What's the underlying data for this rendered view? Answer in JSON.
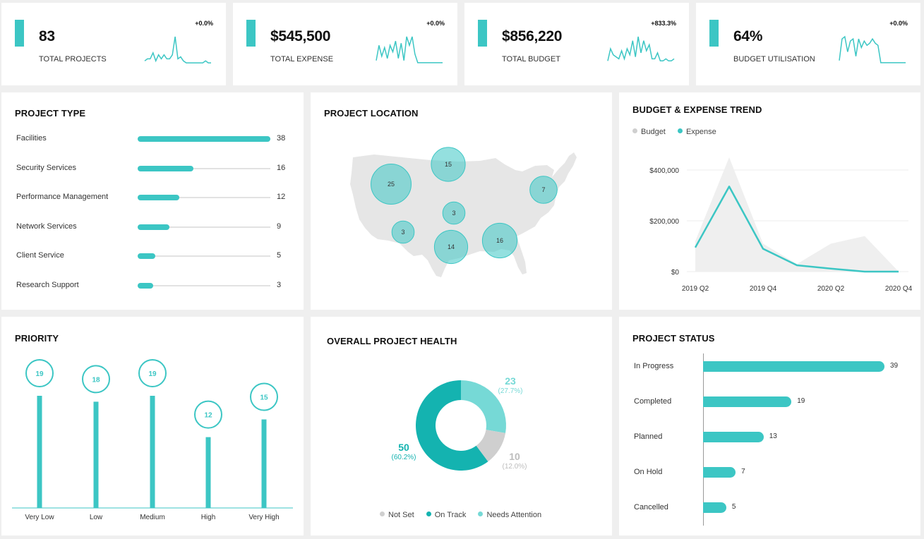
{
  "colors": {
    "accent": "#3cc6c4",
    "dark_teal": "#14b3b0",
    "light_teal": "#76d9d6",
    "grey": "#cfcfcf",
    "map": "#e6e6e6"
  },
  "kpis": [
    {
      "value": "83",
      "label": "TOTAL PROJECTS",
      "change": "+0.0%",
      "spark": [
        2,
        3,
        3,
        6,
        2,
        5,
        3,
        5,
        3,
        3,
        5,
        14,
        3,
        4,
        2,
        1,
        1,
        1,
        1,
        1,
        1,
        1,
        2,
        1,
        1
      ]
    },
    {
      "value": "$545,500",
      "label": "TOTAL EXPENSE",
      "change": "+0.0%",
      "spark": [
        2,
        9,
        4,
        8,
        3,
        9,
        6,
        11,
        3,
        10,
        2,
        13,
        9,
        13,
        5,
        1,
        1,
        1,
        1,
        1,
        1,
        1,
        1,
        1,
        1
      ]
    },
    {
      "value": "$856,220",
      "label": "TOTAL BUDGET",
      "change": "+833.3%",
      "spark": [
        2,
        8,
        5,
        4,
        3,
        7,
        3,
        8,
        5,
        12,
        4,
        14,
        6,
        12,
        7,
        10,
        3,
        3,
        6,
        2,
        2,
        3,
        2,
        2,
        3
      ]
    },
    {
      "value": "64%",
      "label": "BUDGET UTILISATION",
      "change": "+0.0%",
      "spark": [
        2,
        12,
        13,
        6,
        11,
        12,
        4,
        12,
        8,
        11,
        9,
        10,
        12,
        10,
        9,
        1,
        1,
        1,
        1,
        1,
        1,
        1,
        1,
        1,
        1
      ]
    }
  ],
  "project_type": {
    "title": "PROJECT TYPE",
    "chart_data": {
      "type": "bar",
      "categories": [
        "Facilities",
        "Security Services",
        "Performance Management",
        "Network Services",
        "Client Service",
        "Research Support"
      ],
      "values": [
        38,
        16,
        12,
        9,
        5,
        3
      ],
      "xlim": [
        0,
        38
      ]
    }
  },
  "project_location": {
    "title": "PROJECT LOCATION",
    "bubbles": [
      {
        "region": "West",
        "value": 25
      },
      {
        "region": "Northwest-central",
        "value": 15
      },
      {
        "region": "Northeast",
        "value": 7
      },
      {
        "region": "Central",
        "value": 3
      },
      {
        "region": "Southwest",
        "value": 3
      },
      {
        "region": "South",
        "value": 14
      },
      {
        "region": "Southeast",
        "value": 16
      }
    ]
  },
  "budget_trend": {
    "title": "BUDGET & EXPENSE TREND",
    "chart_data": {
      "type": "area",
      "x": [
        "2019 Q2",
        "2019 Q3",
        "2019 Q4",
        "2020 Q1",
        "2020 Q2",
        "2020 Q3",
        "2020 Q4"
      ],
      "x_ticks": [
        "2019 Q2",
        "2019 Q4",
        "2020 Q2",
        "2020 Q4"
      ],
      "series": [
        {
          "name": "Budget",
          "values": [
            120000,
            450000,
            110000,
            30000,
            110000,
            140000,
            0
          ]
        },
        {
          "name": "Expense",
          "values": [
            95000,
            335000,
            90000,
            25000,
            12000,
            0,
            0
          ]
        }
      ],
      "y_ticks": [
        "$400,000",
        "$200,000",
        "$0"
      ],
      "ylim": [
        0,
        400000
      ]
    }
  },
  "priority": {
    "title": "PRIORITY",
    "chart_data": {
      "type": "bar",
      "categories": [
        "Very Low",
        "Low",
        "Medium",
        "High",
        "Very High"
      ],
      "values": [
        19,
        18,
        19,
        12,
        15
      ],
      "ylim": [
        0,
        19
      ]
    }
  },
  "health": {
    "title": "OVERALL PROJECT HEALTH",
    "chart_data": {
      "type": "pie",
      "slices": [
        {
          "name": "Needs Attention",
          "value": 23,
          "pct": "(27.7%)"
        },
        {
          "name": "Not Set",
          "value": 10,
          "pct": "(12.0%)"
        },
        {
          "name": "On Track",
          "value": 50,
          "pct": "(60.2%)"
        }
      ],
      "legend": [
        "Not Set",
        "On Track",
        "Needs Attention"
      ]
    }
  },
  "status": {
    "title": "PROJECT STATUS",
    "chart_data": {
      "type": "bar",
      "categories": [
        "In Progress",
        "Completed",
        "Planned",
        "On Hold",
        "Cancelled"
      ],
      "values": [
        39,
        19,
        13,
        7,
        5
      ],
      "xlim": [
        0,
        39
      ]
    }
  }
}
